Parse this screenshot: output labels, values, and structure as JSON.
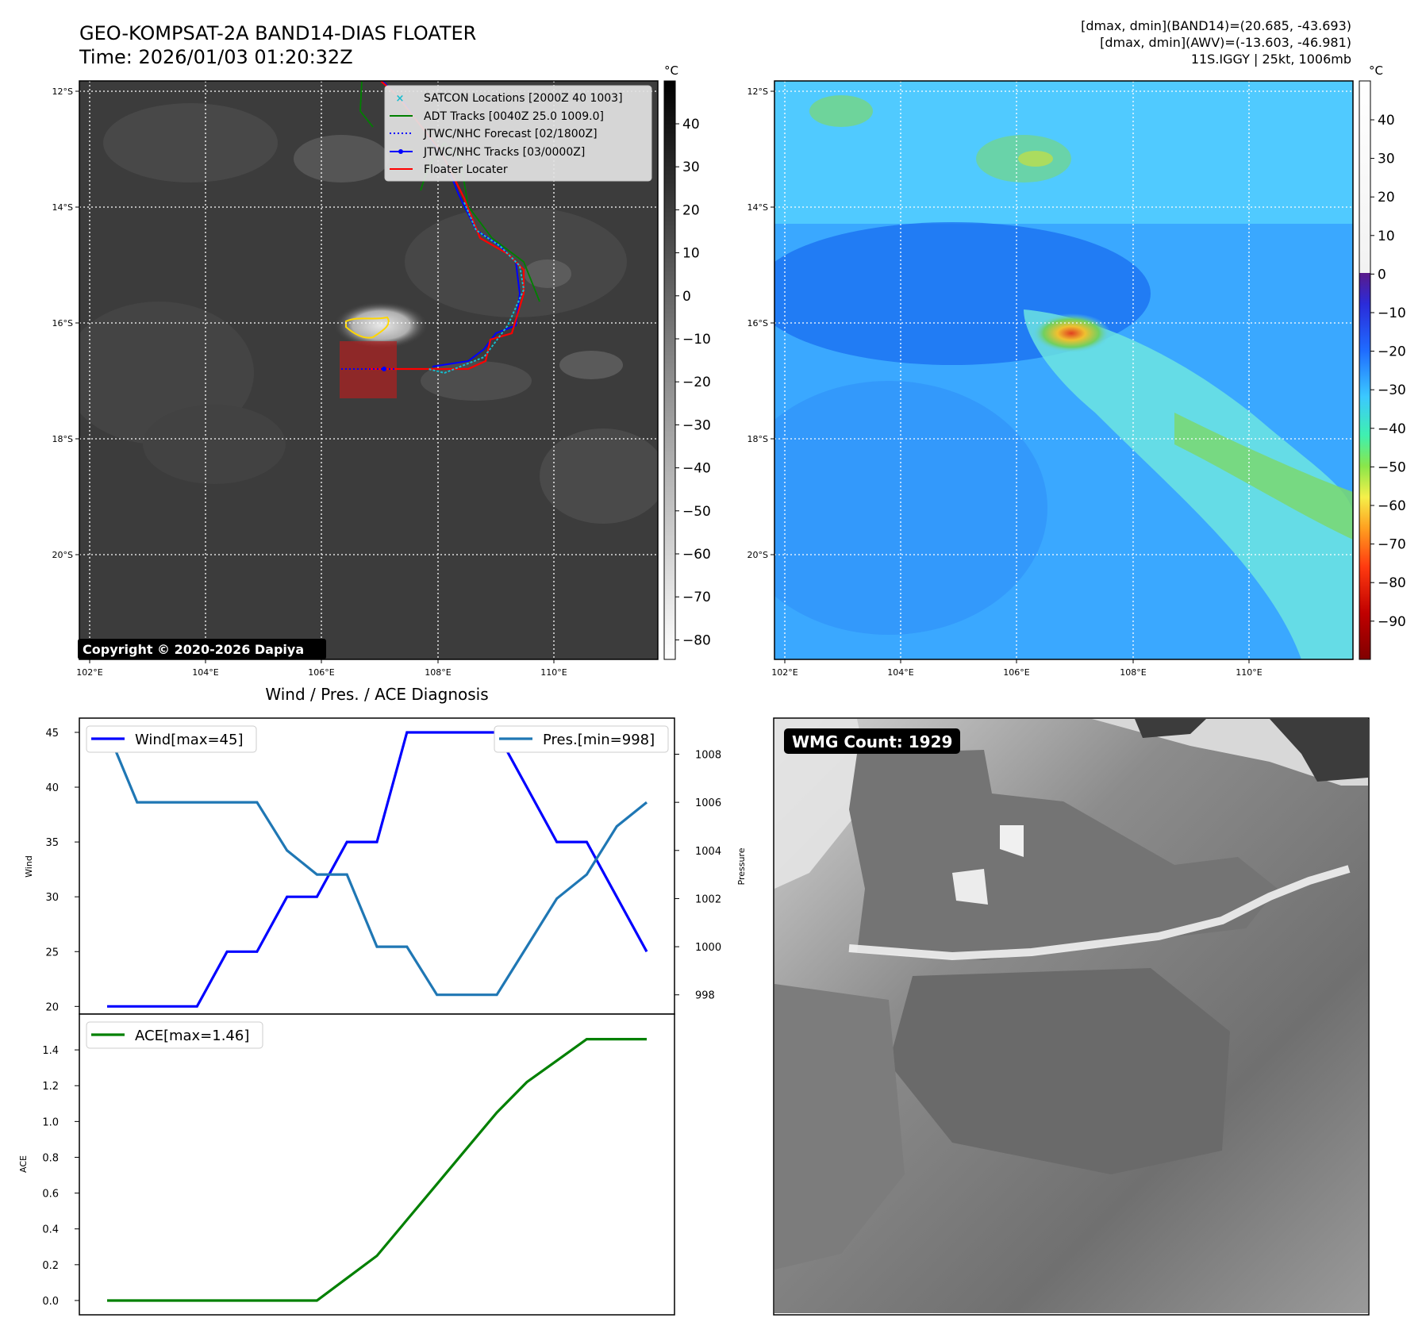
{
  "header": {
    "title": "GEO-KOMPSAT-2A BAND14-DIAS FLOATER",
    "time": "Time: 2026/01/03 01:20:32Z",
    "info_line1": "[dmax, dmin](BAND14)=(20.685, -43.693)",
    "info_line2": "[dmax, dmin](AWV)=(-13.603, -46.981)",
    "info_line3": "11S.IGGY | 25kt, 1006mb"
  },
  "copyright": "Copyright © 2020-2026 Dapiya",
  "maps": {
    "lon_ticks": [
      "102°E",
      "104°E",
      "106°E",
      "108°E",
      "110°E"
    ],
    "lat_ticks": [
      "12°S",
      "14°S",
      "16°S",
      "18°S",
      "20°S"
    ],
    "left_colorbar": {
      "unit": "°C",
      "ticks": [
        "40",
        "30",
        "20",
        "10",
        "0",
        "−10",
        "−20",
        "−30",
        "−40",
        "−50",
        "−60",
        "−70",
        "−80"
      ]
    },
    "right_colorbar": {
      "unit": "°C",
      "ticks": [
        "40",
        "30",
        "20",
        "10",
        "0",
        "−10",
        "−20",
        "−30",
        "−40",
        "−50",
        "−60",
        "−70",
        "−80",
        "−90"
      ]
    },
    "legend": [
      {
        "label": "SATCON Locations [2000Z 40 1003]",
        "color": "#17becf",
        "marker": "x"
      },
      {
        "label": "ADT Tracks [0040Z 25.0 1009.0]",
        "color": "#008000",
        "marker": "line"
      },
      {
        "label": "JTWC/NHC Forecast [02/1800Z]",
        "color": "#0000ff",
        "marker": "dotted"
      },
      {
        "label": "JTWC/NHC Tracks [03/0000Z]",
        "color": "#0000ff",
        "marker": "line-dot"
      },
      {
        "label": "Floater Locater",
        "color": "#ff0000",
        "marker": "line"
      }
    ]
  },
  "wmg_count": "WMG Count: 1929",
  "chart_data": [
    {
      "type": "line",
      "title": "Wind / Pres. / ACE Diagnosis",
      "ylabel": "Wind",
      "ylabel_right": "Pressure",
      "ylim": [
        19.3,
        46.3
      ],
      "ylim_right": [
        997.2,
        1009.5
      ],
      "yticks": [
        "20",
        "25",
        "30",
        "35",
        "40",
        "45"
      ],
      "yticks_right": [
        "998",
        "1000",
        "1002",
        "1004",
        "1006",
        "1008"
      ],
      "x": [
        0,
        1,
        2,
        3,
        4,
        5,
        6,
        7,
        8,
        9,
        10,
        11,
        12,
        13,
        14,
        15,
        16,
        17,
        18
      ],
      "series": [
        {
          "name": "Wind[max=45]",
          "axis": "left",
          "color": "#0000ff",
          "values": [
            20,
            20,
            20,
            20,
            25,
            25,
            30,
            30,
            35,
            35,
            45,
            45,
            45,
            45,
            40,
            35,
            35,
            30,
            25
          ]
        },
        {
          "name": "Pres.[min=998]",
          "axis": "right",
          "color": "#1f77b4",
          "values": [
            1009,
            1006,
            1006,
            1006,
            1006,
            1006,
            1004,
            1003,
            1003,
            1000,
            1000,
            998,
            998,
            998,
            1000,
            1002,
            1003,
            1005,
            1006
          ]
        }
      ]
    },
    {
      "type": "line",
      "ylabel": "ACE",
      "ylim": [
        -0.08,
        1.6
      ],
      "yticks": [
        "0.0",
        "0.2",
        "0.4",
        "0.6",
        "0.8",
        "1.0",
        "1.2",
        "1.4"
      ],
      "x": [
        0,
        1,
        2,
        3,
        4,
        5,
        6,
        7,
        8,
        9,
        10,
        11,
        12,
        13,
        14,
        15,
        16,
        17,
        18
      ],
      "series": [
        {
          "name": "ACE[max=1.46]",
          "axis": "left",
          "color": "#008000",
          "values": [
            0,
            0,
            0,
            0,
            0,
            0,
            0,
            0,
            0.125,
            0.25,
            0.45,
            0.65,
            0.85,
            1.05,
            1.22,
            1.34,
            1.46,
            1.46,
            1.46
          ]
        }
      ]
    }
  ]
}
